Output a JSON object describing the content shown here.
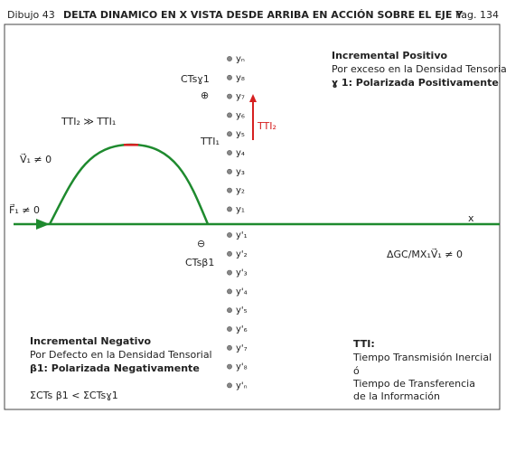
{
  "header": {
    "label": "Dibujo 43",
    "title": "DELTA DINAMICO EN X VISTA DESDE ARRIBA EN ACCIÓN SOBRE EL EJE Y",
    "page": "Pag. 134"
  },
  "positive_levels": [
    "yₙ",
    "y₈",
    "y₇",
    "y₆",
    "y₅",
    "y₄",
    "y₃",
    "y₂",
    "y₁"
  ],
  "negative_levels": [
    "y'₁",
    "y'₂",
    "y'₃",
    "y'₄",
    "y'₅",
    "y'₆",
    "y'₇",
    "y'₈",
    "y'ₙ"
  ],
  "labels": {
    "force": "F⃗₁ ≠ 0",
    "velocity": "V⃗₁ ≠ 0",
    "tti_relation": "TTI₂ ≫ TTI₁",
    "cts_positive": "CTsɣ1",
    "plus": "⊕",
    "tti1": "TTI₁",
    "tti2": "TTI₂",
    "minus": "⊖",
    "cts_negative": "CTsβ1",
    "x_axis": "x",
    "delta_gc": "ΔGC/MX₁V⃗₁ ≠ 0"
  },
  "positive_block": {
    "title": "Incremental Positivo",
    "line1": "Por exceso en la Densidad Tensorial",
    "line2": "ɣ 1: Polarizada Positivamente"
  },
  "negative_block": {
    "title": "Incremental Negativo",
    "line1": "Por Defecto en la Densidad Tensorial",
    "line2": "β1: Polarizada Negativamente",
    "sum": "ΣCTs β1 < ΣCTsɣ1"
  },
  "tti_block": {
    "title": "TTI:",
    "line1": "Tiempo Transmisión Inercial",
    "line2": "ó",
    "line3": "Tiempo de Transferencia",
    "line4": "de la Información"
  }
}
